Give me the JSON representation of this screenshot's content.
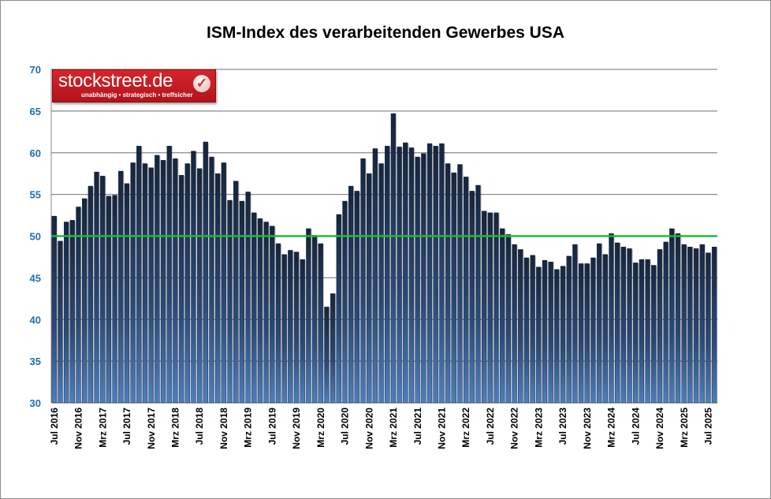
{
  "chart_data": {
    "type": "bar",
    "title": "ISM-Index des verarbeitenden Gewerbes USA",
    "xlabel": "",
    "ylabel": "",
    "ylim": [
      30,
      70
    ],
    "yticks": [
      30,
      35,
      40,
      45,
      50,
      55,
      60,
      65,
      70
    ],
    "grid": true,
    "reference_line": {
      "value": 50,
      "color": "#22b83a"
    },
    "bar_color": "#1d3352",
    "tick_labels": [
      "Jul 2016",
      "Nov 2016",
      "Mrz 2017",
      "Jul 2017",
      "Nov 2017",
      "Mrz 2018",
      "Jul 2018",
      "Nov 2018",
      "Mrz 2019",
      "Jul 2019",
      "Nov 2019",
      "Mrz 2020",
      "Jul 2020",
      "Nov 2020",
      "Mrz 2021",
      "Jul 2021",
      "Nov 2021",
      "Mrz 2022",
      "Jul 2022",
      "Nov 2022",
      "Mrz 2023",
      "Jul 2023",
      "Nov 2023",
      "Mrz 2024",
      "Jul 2024",
      "Nov 2024",
      "Mrz 2025",
      "Jul 2025"
    ],
    "start": "Jul 2016",
    "end": "Aug 2025",
    "values": [
      52.4,
      49.4,
      51.7,
      51.9,
      53.5,
      54.5,
      56.0,
      57.7,
      57.2,
      54.8,
      54.9,
      57.8,
      56.3,
      58.8,
      60.8,
      58.7,
      58.2,
      59.7,
      59.1,
      60.8,
      59.3,
      57.3,
      58.7,
      60.2,
      58.1,
      61.3,
      59.5,
      57.5,
      58.8,
      54.3,
      56.6,
      54.2,
      55.3,
      52.8,
      52.1,
      51.7,
      51.2,
      49.1,
      47.8,
      48.3,
      48.1,
      47.2,
      50.9,
      50.1,
      49.1,
      41.5,
      43.1,
      52.6,
      54.2,
      56.0,
      55.4,
      59.3,
      57.5,
      60.5,
      58.7,
      60.8,
      64.7,
      60.7,
      61.2,
      60.6,
      59.5,
      59.9,
      61.1,
      60.8,
      61.1,
      58.7,
      57.6,
      58.6,
      57.1,
      55.4,
      56.1,
      53.0,
      52.8,
      52.8,
      50.9,
      50.2,
      49.0,
      48.4,
      47.4,
      47.7,
      46.3,
      47.1,
      46.9,
      46.0,
      46.4,
      47.6,
      49.0,
      46.7,
      46.7,
      47.4,
      49.1,
      47.8,
      50.3,
      49.2,
      48.7,
      48.5,
      46.8,
      47.2,
      47.2,
      46.5,
      48.4,
      49.3,
      50.9,
      50.3,
      49.0,
      48.7,
      48.5,
      49.0,
      48.0,
      48.7
    ]
  },
  "logo": {
    "name": "stockstreet.de",
    "slogan": "unabhängig • strategisch • treffsicher"
  }
}
